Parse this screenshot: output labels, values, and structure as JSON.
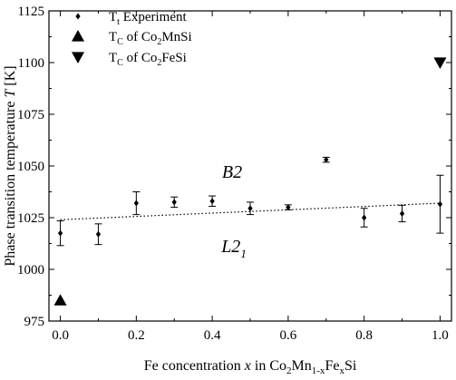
{
  "chart_data": {
    "type": "scatter",
    "xlabel": {
      "prefix": "Fe concentration ",
      "var": "x",
      "mid": " in Co",
      "sub1": "2",
      "mn": "Mn",
      "sub2": "1-x",
      "fe": "Fe",
      "sub3": "x",
      "end": "Si"
    },
    "ylabel": {
      "text": "Phase transition temperature ",
      "var": "T",
      "unit": " [K]"
    },
    "xlim": [
      -0.03,
      1.03
    ],
    "ylim": [
      975,
      1125
    ],
    "x_ticks": [
      "0.0",
      "0.2",
      "0.4",
      "0.6",
      "0.8",
      "1.0"
    ],
    "x_tick_values": [
      0.0,
      0.2,
      0.4,
      0.6,
      0.8,
      1.0
    ],
    "y_ticks": [
      "975",
      "1000",
      "1025",
      "1050",
      "1075",
      "1100",
      "1125"
    ],
    "y_tick_values": [
      975,
      1000,
      1025,
      1050,
      1075,
      1100,
      1125
    ],
    "legend": [
      {
        "marker": "diamond",
        "pre": "T",
        "sub": "t",
        "post": " Experiment"
      },
      {
        "marker": "triangle-up",
        "pre": "T",
        "sub": "C",
        "post": " of Co",
        "sub2": "2",
        "post2": "MnSi"
      },
      {
        "marker": "triangle-down",
        "pre": "T",
        "sub": "C",
        "post": " of Co",
        "sub2": "2",
        "post2": "FeSi"
      }
    ],
    "series": [
      {
        "marker": "diamond",
        "x": [
          0.0,
          0.1,
          0.2,
          0.3,
          0.4,
          0.5,
          0.6,
          0.7,
          0.8,
          0.9,
          1.0
        ],
        "y": [
          1017.5,
          1017,
          1032,
          1032.5,
          1033,
          1029.5,
          1030,
          1053,
          1025,
          1027,
          1031.5
        ],
        "err": [
          6,
          5,
          5.5,
          2.5,
          2.5,
          3,
          1.2,
          1.2,
          4.5,
          4,
          14
        ]
      },
      {
        "marker": "triangle-up",
        "x": [
          0.0
        ],
        "y": [
          985
        ]
      },
      {
        "marker": "triangle-down",
        "x": [
          1.0
        ],
        "y": [
          1100
        ]
      }
    ],
    "fit_line": {
      "style": "dotted",
      "x": [
        0.0,
        1.0
      ],
      "y": [
        1024,
        1032
      ]
    },
    "annotations": [
      {
        "text": "B2",
        "x": 0.5,
        "y": 1047
      },
      {
        "text": "L2",
        "sub": "1",
        "x": 0.5,
        "y": 1010
      }
    ]
  }
}
